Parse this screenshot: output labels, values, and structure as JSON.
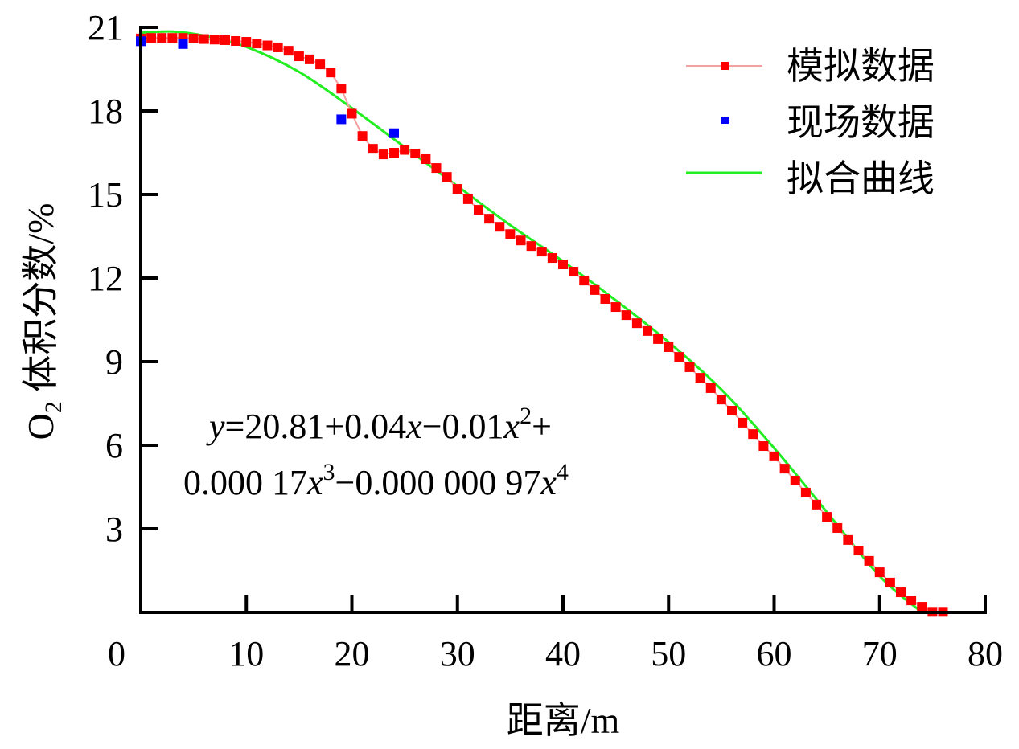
{
  "chart_data": {
    "type": "scatter",
    "xlabel": "距离/m",
    "ylabel_main": "O",
    "ylabel_sub": "2",
    "ylabel_rest": " 体积分数/%",
    "xlim": [
      0,
      80
    ],
    "ylim": [
      0,
      21
    ],
    "xticks": [
      0,
      10,
      20,
      30,
      40,
      50,
      60,
      70,
      80
    ],
    "yticks": [
      3,
      6,
      9,
      12,
      15,
      18,
      21
    ],
    "grid": false,
    "legend_placement": "top-right",
    "equation": {
      "line1": [
        "y",
        "=20.81+0.04",
        "x",
        "−0.01",
        "x",
        "2",
        "+"
      ],
      "line2": [
        "0.000 17",
        "x",
        "3",
        "−0.000 000 97",
        "x",
        "4"
      ]
    },
    "series": [
      {
        "name": "模拟数据",
        "kind": "line-marker",
        "color": "#ff0000",
        "line_color": "#f4a0a0",
        "x": [
          0,
          1,
          2,
          3,
          4,
          5,
          6,
          7,
          8,
          9,
          10,
          11,
          12,
          13,
          14,
          15,
          16,
          17,
          18,
          19,
          20,
          21,
          22,
          23,
          24,
          25,
          26,
          27,
          28,
          29,
          30,
          31,
          32,
          33,
          34,
          35,
          36,
          37,
          38,
          39,
          40,
          41,
          42,
          43,
          44,
          45,
          46,
          47,
          48,
          49,
          50,
          51,
          52,
          53,
          54,
          55,
          56,
          57,
          58,
          59,
          60,
          61,
          62,
          63,
          64,
          65,
          66,
          67,
          68,
          69,
          70,
          71,
          72,
          73,
          74,
          75,
          76
        ],
        "y": [
          20.6,
          20.62,
          20.62,
          20.62,
          20.62,
          20.6,
          20.58,
          20.56,
          20.54,
          20.51,
          20.48,
          20.42,
          20.35,
          20.28,
          20.16,
          19.96,
          19.85,
          19.67,
          19.38,
          18.8,
          17.9,
          17.1,
          16.64,
          16.44,
          16.5,
          16.6,
          16.47,
          16.27,
          15.95,
          15.63,
          15.2,
          14.83,
          14.45,
          14.13,
          13.84,
          13.58,
          13.35,
          13.15,
          12.95,
          12.72,
          12.49,
          12.23,
          11.91,
          11.57,
          11.25,
          10.96,
          10.67,
          10.38,
          10.1,
          9.81,
          9.52,
          9.17,
          8.8,
          8.42,
          8.05,
          7.64,
          7.24,
          6.81,
          6.4,
          5.97,
          5.6,
          5.16,
          4.73,
          4.3,
          3.87,
          3.43,
          3.03,
          2.6,
          2.22,
          1.85,
          1.44,
          1.07,
          0.72,
          0.43,
          0.2,
          0.02,
          0.02
        ]
      },
      {
        "name": "现场数据",
        "kind": "marker",
        "color": "#0000ff",
        "x": [
          0,
          4,
          19,
          24
        ],
        "y": [
          20.5,
          20.4,
          17.7,
          17.2
        ]
      },
      {
        "name": "拟合曲线",
        "kind": "line",
        "color": "#22ee22",
        "x": [
          0,
          3,
          6,
          10,
          15,
          20,
          25,
          30,
          35,
          40,
          45,
          50,
          55,
          60,
          65,
          70,
          74
        ],
        "y": [
          20.81,
          20.85,
          20.7,
          20.3,
          19.4,
          18.1,
          16.7,
          15.3,
          13.9,
          12.6,
          11.2,
          9.7,
          8.0,
          5.9,
          3.6,
          1.3,
          0
        ]
      }
    ]
  }
}
